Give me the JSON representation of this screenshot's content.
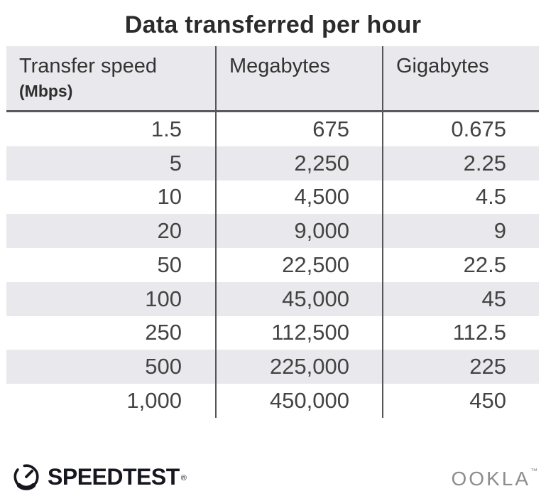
{
  "title": "Data transferred per hour",
  "table": {
    "columns": [
      {
        "label": "Transfer speed",
        "sublabel": "(Mbps)"
      },
      {
        "label": "Megabytes"
      },
      {
        "label": "Gigabytes"
      }
    ],
    "rows": [
      [
        "1.5",
        "675",
        "0.675"
      ],
      [
        "5",
        "2,250",
        "2.25"
      ],
      [
        "10",
        "4,500",
        "4.5"
      ],
      [
        "20",
        "9,000",
        "9"
      ],
      [
        "50",
        "22,500",
        "22.5"
      ],
      [
        "100",
        "45,000",
        "45"
      ],
      [
        "250",
        "112,500",
        "112.5"
      ],
      [
        "500",
        "225,000",
        "225"
      ],
      [
        "1,000",
        "450,000",
        "450"
      ]
    ]
  },
  "chart_data": {
    "type": "table",
    "title": "Data transferred per hour",
    "columns": [
      "Transfer speed (Mbps)",
      "Megabytes",
      "Gigabytes"
    ],
    "rows": [
      [
        1.5,
        675,
        0.675
      ],
      [
        5,
        2250,
        2.25
      ],
      [
        10,
        4500,
        4.5
      ],
      [
        20,
        9000,
        9
      ],
      [
        50,
        22500,
        22.5
      ],
      [
        100,
        45000,
        45
      ],
      [
        250,
        112500,
        112.5
      ],
      [
        500,
        225000,
        225
      ],
      [
        1000,
        450000,
        450
      ]
    ]
  },
  "footer": {
    "speedtest_label": "SPEEDTEST",
    "speedtest_mark": "®",
    "ookla_label": "OOKLA",
    "ookla_mark": "™"
  },
  "colors": {
    "stripe_bg": "#e9e9ed",
    "header_bg": "#e9e9ed",
    "divider": "#55555a",
    "header_underline": "#5a5a5a",
    "title_text": "#2b2b2b",
    "data_text": "#434343",
    "speedtest_dark": "#16161f",
    "ookla_gray": "#8d8d8d"
  }
}
